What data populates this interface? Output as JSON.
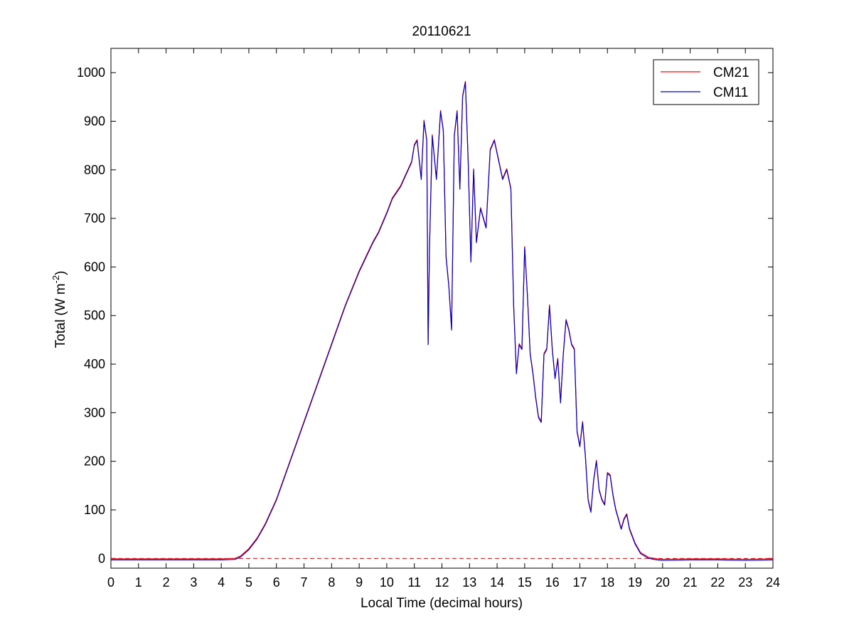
{
  "chart_data": {
    "type": "line",
    "title": "20110621",
    "xlabel": "Local Time (decimal hours)",
    "ylabel_main": "Total (W m",
    "ylabel_sup": "-2",
    "ylabel_tail": ")",
    "xlim": [
      0,
      24
    ],
    "ylim": [
      -20,
      1050
    ],
    "x_ticks": [
      0,
      1,
      2,
      3,
      4,
      5,
      6,
      7,
      8,
      9,
      10,
      11,
      12,
      13,
      14,
      15,
      16,
      17,
      18,
      19,
      20,
      21,
      22,
      23,
      24
    ],
    "y_ticks": [
      0,
      100,
      200,
      300,
      400,
      500,
      600,
      700,
      800,
      900,
      1000
    ],
    "grid": false,
    "legend_position": "top-right",
    "zero_line": {
      "y": 0,
      "color": "#cc0000",
      "style": "dashed"
    },
    "series": [
      {
        "name": "CM21",
        "color": "#ff0000"
      },
      {
        "name": "CM11",
        "color": "#0000cc"
      }
    ],
    "x": [
      0,
      1,
      2,
      3,
      4,
      4.5,
      4.7,
      5,
      5.3,
      5.6,
      6,
      6.5,
      7,
      7.5,
      8,
      8.5,
      9,
      9.5,
      9.7,
      10,
      10.2,
      10.5,
      10.7,
      10.9,
      11.0,
      11.1,
      11.25,
      11.35,
      11.45,
      11.5,
      11.55,
      11.65,
      11.8,
      11.95,
      12.05,
      12.15,
      12.25,
      12.35,
      12.45,
      12.55,
      12.65,
      12.75,
      12.85,
      12.95,
      13.05,
      13.15,
      13.25,
      13.4,
      13.6,
      13.75,
      13.9,
      14.05,
      14.2,
      14.35,
      14.5,
      14.6,
      14.7,
      14.8,
      14.9,
      15.0,
      15.1,
      15.2,
      15.3,
      15.4,
      15.5,
      15.6,
      15.7,
      15.8,
      15.9,
      16.0,
      16.1,
      16.2,
      16.3,
      16.4,
      16.5,
      16.6,
      16.7,
      16.8,
      16.9,
      17.0,
      17.1,
      17.2,
      17.3,
      17.4,
      17.5,
      17.6,
      17.7,
      17.8,
      17.9,
      18.0,
      18.1,
      18.2,
      18.3,
      18.5,
      18.6,
      18.7,
      18.8,
      19.0,
      19.2,
      19.5,
      19.8,
      20,
      21,
      22,
      23,
      24
    ],
    "values": [
      -3,
      -3,
      -3,
      -3,
      -3,
      -2,
      3,
      18,
      40,
      70,
      120,
      200,
      280,
      360,
      440,
      520,
      590,
      650,
      670,
      710,
      740,
      765,
      790,
      815,
      850,
      860,
      780,
      900,
      860,
      440,
      640,
      870,
      780,
      920,
      880,
      620,
      560,
      470,
      870,
      920,
      760,
      950,
      980,
      820,
      610,
      800,
      650,
      720,
      680,
      840,
      860,
      820,
      780,
      800,
      760,
      520,
      380,
      440,
      430,
      640,
      540,
      420,
      380,
      330,
      290,
      280,
      420,
      430,
      520,
      430,
      370,
      410,
      320,
      420,
      490,
      470,
      440,
      430,
      260,
      230,
      280,
      210,
      120,
      95,
      160,
      200,
      140,
      120,
      110,
      175,
      170,
      130,
      100,
      60,
      80,
      90,
      60,
      30,
      10,
      0,
      -3,
      -4,
      -3,
      -3,
      -4,
      -3
    ]
  }
}
